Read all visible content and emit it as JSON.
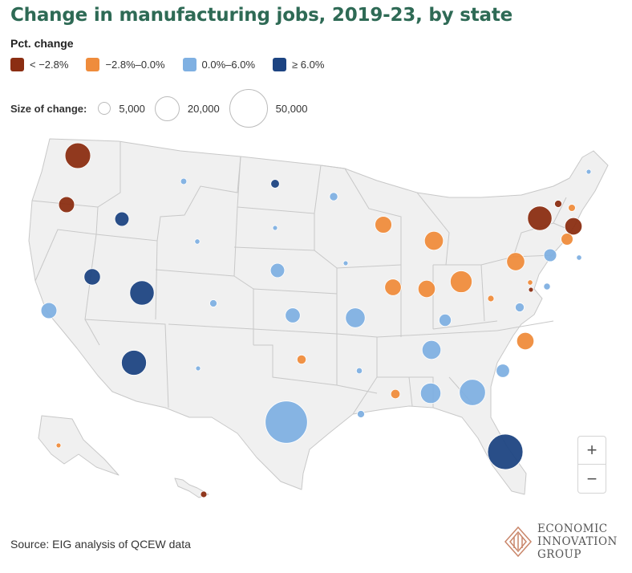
{
  "title": "Change in manufacturing jobs, 2019-23, by state",
  "legend": {
    "heading": "Pct. change",
    "items": [
      {
        "label": "< −2.8%",
        "color": "#8b2e12"
      },
      {
        "label": "−2.8%–0.0%",
        "color": "#ef8c3c"
      },
      {
        "label": "0.0%–6.0%",
        "color": "#7fb0e2"
      },
      {
        "label": "≥ 6.0%",
        "color": "#1d4482"
      }
    ]
  },
  "size_legend": {
    "label": "Size of change:",
    "items": [
      {
        "label": "5,000",
        "value": 5000
      },
      {
        "label": "20,000",
        "value": 20000
      },
      {
        "label": "50,000",
        "value": 50000
      }
    ]
  },
  "zoom": {
    "in": "+",
    "out": "−"
  },
  "source": "Source: EIG analysis of QCEW data",
  "logo": {
    "line1": "ECONOMIC",
    "line2": "INNOVATION",
    "line3": "GROUP",
    "color": "#c9866a"
  },
  "map_colors": {
    "land": "#f0f0f0",
    "border": "#c8c8c8"
  },
  "states": [
    {
      "state": "WA",
      "class": 0,
      "size": 22000
    },
    {
      "state": "OR",
      "class": 0,
      "size": 8500
    },
    {
      "state": "ID",
      "class": 3,
      "size": 6800
    },
    {
      "state": "MT",
      "class": 2,
      "size": 1300
    },
    {
      "state": "ND",
      "class": 3,
      "size": 2500
    },
    {
      "state": "MN",
      "class": 2,
      "size": 2300
    },
    {
      "state": "WI",
      "class": 1,
      "size": 9500
    },
    {
      "state": "MI",
      "class": 1,
      "size": 12000
    },
    {
      "state": "NY",
      "class": 0,
      "size": 20000
    },
    {
      "state": "VT",
      "class": 0,
      "size": 1800
    },
    {
      "state": "NH",
      "class": 1,
      "size": 1700
    },
    {
      "state": "ME",
      "class": 2,
      "size": 600
    },
    {
      "state": "MA",
      "class": 0,
      "size": 10000
    },
    {
      "state": "CT",
      "class": 1,
      "size": 4800
    },
    {
      "state": "RI",
      "class": 2,
      "size": 900
    },
    {
      "state": "NJ",
      "class": 2,
      "size": 5500
    },
    {
      "state": "PA",
      "class": 1,
      "size": 11000
    },
    {
      "state": "DE",
      "class": 2,
      "size": 1500
    },
    {
      "state": "MD",
      "class": 1,
      "size": 900
    },
    {
      "state": "DC",
      "class": 0,
      "size": 700
    },
    {
      "state": "SD",
      "class": 2,
      "size": 700
    },
    {
      "state": "WY",
      "class": 2,
      "size": 900
    },
    {
      "state": "NE",
      "class": 2,
      "size": 6800
    },
    {
      "state": "IA",
      "class": 2,
      "size": 500
    },
    {
      "state": "IL",
      "class": 1,
      "size": 9200
    },
    {
      "state": "IN",
      "class": 1,
      "size": 10000
    },
    {
      "state": "OH",
      "class": 1,
      "size": 16000
    },
    {
      "state": "WV",
      "class": 1,
      "size": 1400
    },
    {
      "state": "VA",
      "class": 2,
      "size": 2700
    },
    {
      "state": "NV",
      "class": 3,
      "size": 9000
    },
    {
      "state": "UT",
      "class": 3,
      "size": 20000
    },
    {
      "state": "CO",
      "class": 2,
      "size": 1800
    },
    {
      "state": "CA",
      "class": 2,
      "size": 8500
    },
    {
      "state": "KS",
      "class": 2,
      "size": 7500
    },
    {
      "state": "MO",
      "class": 2,
      "size": 13000
    },
    {
      "state": "KY",
      "class": 2,
      "size": 5000
    },
    {
      "state": "NC",
      "class": 1,
      "size": 10000
    },
    {
      "state": "TN",
      "class": 2,
      "size": 12000
    },
    {
      "state": "SC",
      "class": 2,
      "size": 6000
    },
    {
      "state": "AZ",
      "class": 3,
      "size": 21000
    },
    {
      "state": "NM",
      "class": 2,
      "size": 300
    },
    {
      "state": "OK",
      "class": 1,
      "size": 2800
    },
    {
      "state": "AR",
      "class": 2,
      "size": 1200
    },
    {
      "state": "MS",
      "class": 1,
      "size": 2900
    },
    {
      "state": "AL",
      "class": 2,
      "size": 14000
    },
    {
      "state": "GA",
      "class": 2,
      "size": 23000
    },
    {
      "state": "TX",
      "class": 2,
      "size": 60000
    },
    {
      "state": "LA",
      "class": 2,
      "size": 1800
    },
    {
      "state": "FL",
      "class": 3,
      "size": 42000
    },
    {
      "state": "AK",
      "class": 1,
      "size": 500
    },
    {
      "state": "HI",
      "class": 0,
      "size": 1400
    }
  ]
}
